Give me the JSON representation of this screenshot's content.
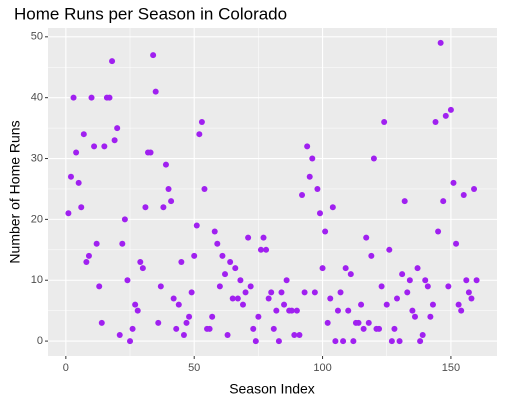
{
  "chart_data": {
    "type": "scatter",
    "title": "Home Runs per Season in Colorado",
    "x_label": "Season Index",
    "y_label": "Number of Home Runs",
    "color": "#a020f0",
    "grid": true,
    "xlim": [
      -6.95,
      167.95
    ],
    "xticks": [
      0,
      50,
      100,
      150
    ],
    "ylim": [
      -2.45,
      51.45
    ],
    "yticks": [
      0,
      10,
      20,
      30,
      40,
      50
    ],
    "x": [
      1,
      2,
      3,
      4,
      5,
      6,
      7,
      8,
      9,
      10,
      11,
      12,
      13,
      14,
      15,
      16,
      17,
      18,
      19,
      20,
      21,
      22,
      23,
      24,
      25,
      26,
      27,
      28,
      29,
      30,
      31,
      32,
      33,
      34,
      35,
      36,
      37,
      38,
      39,
      40,
      41,
      42,
      43,
      44,
      45,
      46,
      47,
      48,
      49,
      50,
      51,
      52,
      53,
      54,
      55,
      56,
      57,
      58,
      59,
      60,
      61,
      62,
      63,
      64,
      65,
      66,
      67,
      68,
      69,
      70,
      71,
      72,
      73,
      74,
      75,
      76,
      77,
      78,
      79,
      80,
      81,
      82,
      83,
      84,
      85,
      86,
      87,
      88,
      89,
      90,
      91,
      92,
      93,
      94,
      95,
      96,
      97,
      98,
      99,
      100,
      101,
      102,
      103,
      104,
      105,
      106,
      107,
      108,
      109,
      110,
      111,
      112,
      113,
      114,
      115,
      116,
      117,
      118,
      119,
      120,
      121,
      122,
      123,
      124,
      125,
      126,
      127,
      128,
      129,
      130,
      131,
      132,
      133,
      134,
      135,
      136,
      137,
      138,
      139,
      140,
      141,
      142,
      143,
      144,
      145,
      146,
      147,
      148,
      149,
      150,
      151,
      152,
      153,
      154,
      155,
      156,
      157,
      158,
      159,
      160
    ],
    "values": [
      21,
      27,
      40,
      31,
      26,
      22,
      34,
      13,
      14,
      40,
      32,
      16,
      9,
      3,
      32,
      40,
      40,
      46,
      33,
      35,
      1,
      16,
      20,
      10,
      0,
      2,
      6,
      5,
      13,
      12,
      22,
      31,
      31,
      47,
      41,
      3,
      9,
      22,
      29,
      25,
      23,
      7,
      2,
      6,
      13,
      1,
      3,
      4,
      8,
      14,
      19,
      34,
      36,
      25,
      2,
      2,
      4,
      18,
      16,
      9,
      14,
      11,
      1,
      13,
      7,
      12,
      7,
      10,
      6,
      8,
      17,
      9,
      2,
      0,
      4,
      15,
      17,
      15,
      7,
      8,
      2,
      5,
      0,
      8,
      6,
      10,
      5,
      5,
      1,
      5,
      1,
      24,
      8,
      32,
      27,
      30,
      8,
      25,
      21,
      12,
      18,
      3,
      7,
      22,
      0,
      5,
      8,
      0,
      12,
      5,
      11,
      0,
      3,
      3,
      6,
      2,
      17,
      3,
      14,
      30,
      2,
      2,
      9,
      36,
      6,
      15,
      0,
      2,
      7,
      0,
      11,
      23,
      8,
      10,
      5,
      4,
      12,
      0,
      1,
      10,
      9,
      4,
      6,
      36,
      18,
      49,
      23,
      37,
      9,
      38,
      26,
      16,
      6,
      5,
      24,
      10,
      8,
      7,
      25,
      10
    ]
  }
}
